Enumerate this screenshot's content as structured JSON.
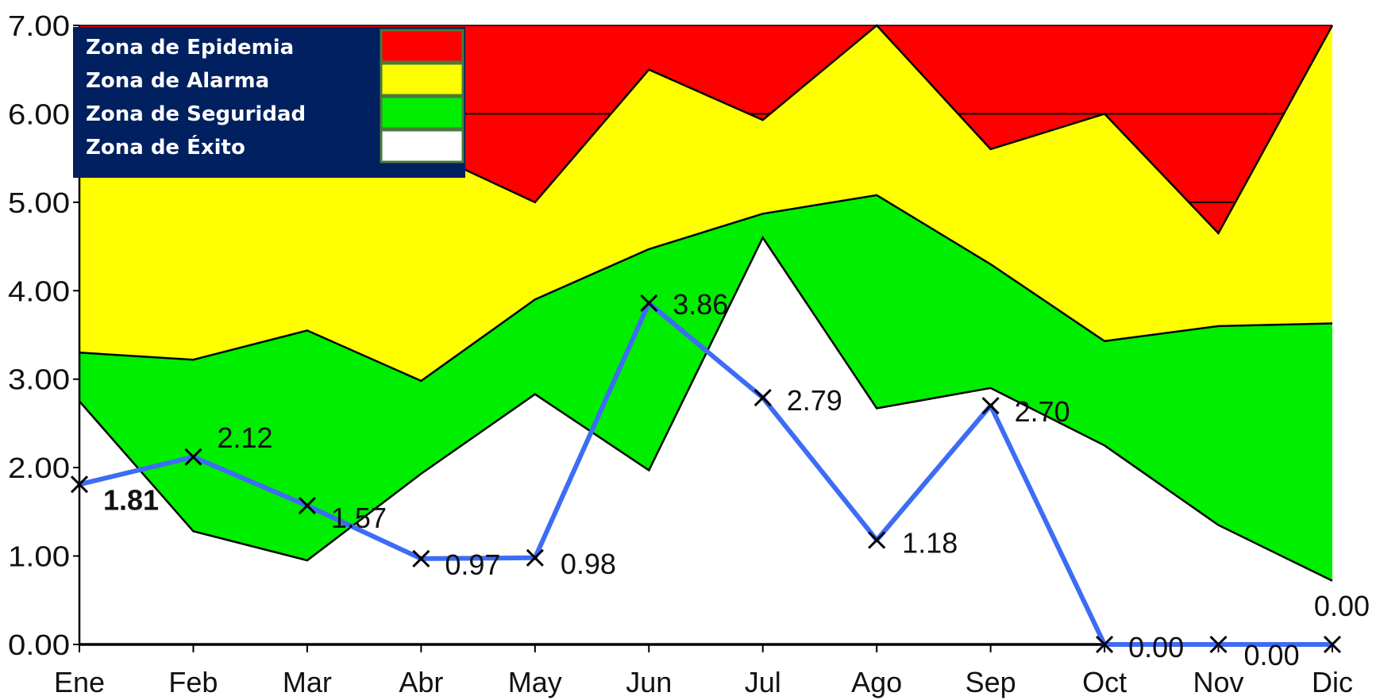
{
  "chart_data": {
    "type": "area",
    "categories": [
      "Ene",
      "Feb",
      "Mar",
      "Abr",
      "May",
      "Jun",
      "Jul",
      "Ago",
      "Sep",
      "Oct",
      "Nov",
      "Dic"
    ],
    "ylim": [
      0,
      7
    ],
    "yticks": [
      "0.00",
      "1.00",
      "2.00",
      "3.00",
      "4.00",
      "5.00",
      "6.00",
      "7.00"
    ],
    "zones": [
      {
        "name": "Zona de Éxito",
        "color": "#ffffff",
        "upper": [
          2.75,
          1.28,
          0.95,
          1.93,
          2.83,
          1.97,
          4.6,
          2.67,
          2.9,
          2.25,
          1.35,
          0.72
        ]
      },
      {
        "name": "Zona de Seguridad",
        "color": "#00ee00",
        "upper": [
          3.3,
          3.22,
          3.55,
          2.98,
          3.9,
          4.47,
          4.87,
          5.08,
          4.3,
          3.43,
          3.6,
          3.63
        ]
      },
      {
        "name": "Zona de Alarma",
        "color": "#ffff00",
        "upper": [
          5.5,
          5.5,
          5.5,
          5.6,
          5.0,
          6.5,
          5.93,
          7.0,
          5.6,
          6.0,
          4.65,
          7.0
        ]
      },
      {
        "name": "Zona de Epidemia",
        "color": "#ff0000",
        "upper": [
          7,
          7,
          7,
          7,
          7,
          7,
          7,
          7,
          7,
          7,
          7,
          7
        ]
      }
    ],
    "series": [
      {
        "values": [
          1.81,
          2.12,
          1.57,
          0.97,
          0.98,
          3.86,
          2.79,
          1.18,
          2.7,
          0.0,
          0.0,
          0.0
        ],
        "color": "#3d6cf5",
        "marker": "x"
      }
    ],
    "data_labels": [
      "1.81",
      "2.12",
      "1.57",
      "0.97",
      "0.98",
      "3.86",
      "2.79",
      "1.18",
      "2.70",
      "0.00",
      "0.00",
      "0.00"
    ],
    "legend": {
      "placement": "top-left",
      "entries": [
        {
          "label": "Zona de Epidemia",
          "color": "#ff0000"
        },
        {
          "label": "Zona de Alarma",
          "color": "#ffff00"
        },
        {
          "label": "Zona de Seguridad",
          "color": "#00ee00"
        },
        {
          "label": "Zona de Éxito",
          "color": "#ffffff"
        }
      ],
      "background": "#002060",
      "swatch_border": "#4a7a3a"
    },
    "grid": false
  }
}
